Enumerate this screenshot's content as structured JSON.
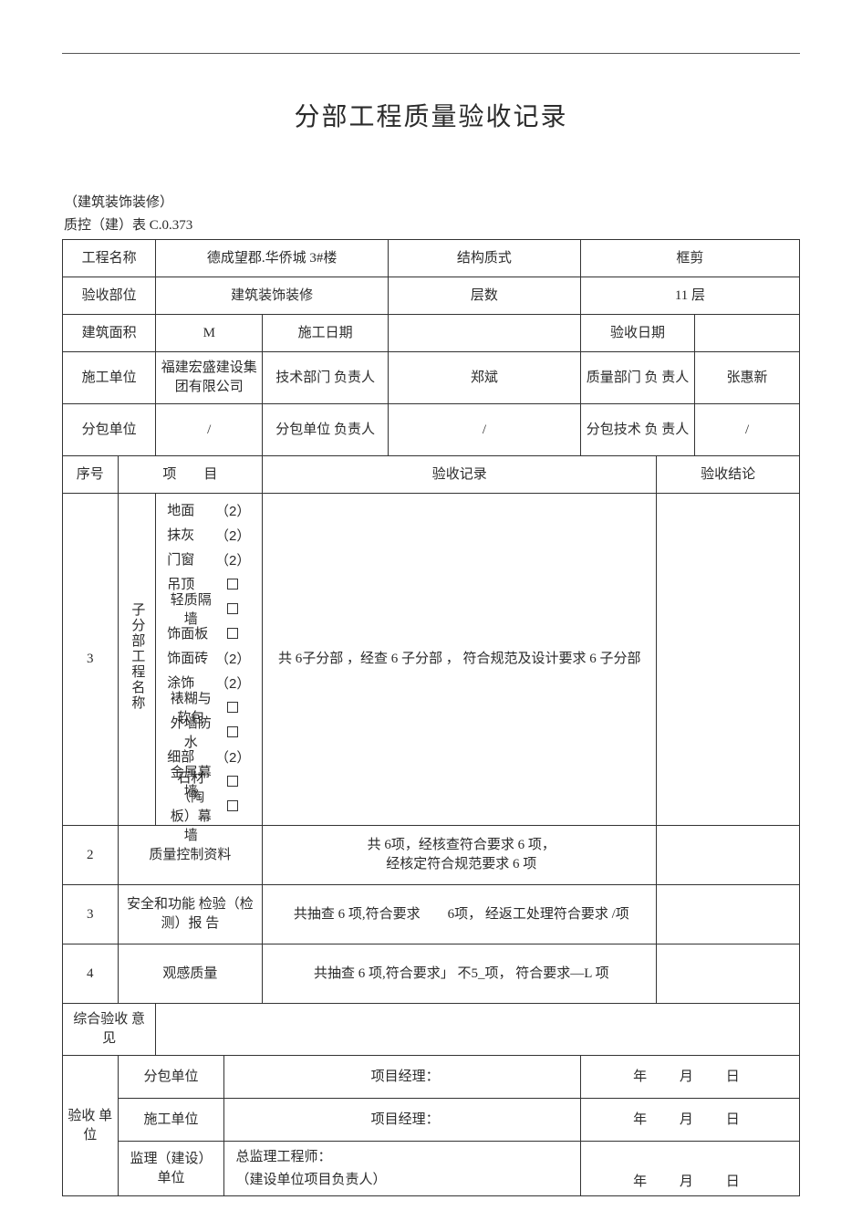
{
  "doc": {
    "title": "分部工程质量验收记录",
    "subtitle": "（建筑装饰装修）",
    "form_no": "质控（建）表 C.0.373"
  },
  "header": {
    "labels": {
      "project_name": "工程名称",
      "structure_type": "结构质式",
      "accept_part": "验收部位",
      "floors": "层数",
      "building_area": "建筑面积",
      "construct_date": "施工日期",
      "accept_date": "验收日期",
      "construct_unit": "施工单位",
      "tech_dept_leader": "技术部门 负责人",
      "quality_dept_leader": "质量部门 负 责人",
      "subcontract_unit": "分包单位",
      "sub_unit_leader": "分包单位 负责人",
      "sub_tech_leader": "分包技术 负 责人"
    },
    "values": {
      "project_name": "德成望郡.华侨城 3#楼",
      "structure_type": "框剪",
      "accept_part": "建筑装饰装修",
      "floors": "11 层",
      "building_area": "M",
      "construct_date": "",
      "accept_date": "",
      "construct_unit": "福建宏盛建设集团有限公司",
      "tech_dept_leader": "郑斌",
      "quality_dept_leader": "张惠新",
      "subcontract_unit": "/",
      "sub_unit_leader": "/",
      "sub_tech_leader": "/"
    }
  },
  "columns": {
    "seq": "序号",
    "item": "项　　目",
    "record": "验收记录",
    "conclusion": "验收结论"
  },
  "section3": {
    "seq": "3",
    "side_label": "子分部工程名称",
    "items": [
      {
        "name": "地面",
        "mark": "（2）"
      },
      {
        "name": "抹灰",
        "mark": "（2）"
      },
      {
        "name": "门窗",
        "mark": "（2）"
      },
      {
        "name": "吊顶",
        "mark": "box"
      },
      {
        "name": "轻质隔墙",
        "mark": "box"
      },
      {
        "name": "饰面板",
        "mark": "box"
      },
      {
        "name": "饰面砖",
        "mark": "（2）"
      },
      {
        "name": "涂饰",
        "mark": "（2）"
      },
      {
        "name": "裱糊与软包",
        "mark": "box"
      },
      {
        "name": "外墙防水",
        "mark": "box"
      },
      {
        "name": "细部",
        "mark": "（2）"
      },
      {
        "name": "金属幕墙",
        "mark": "box"
      },
      {
        "name": "石材（陶板）幕墙",
        "mark": "box"
      }
    ],
    "record": "共 6子分部 ，经查 6 子分部 ， 符合规范及设计要求 6 子分部"
  },
  "rows": {
    "r2": {
      "seq": "2",
      "item": "质量控制资料",
      "record": "共 6项，经核查符合要求 6 项，\n经核定符合规范要求 6 项"
    },
    "r3": {
      "seq": "3",
      "item": "安全和功能 检验（检测）报 告",
      "record": "共抽查 6 项,符合要求　　6项， 经返工处理符合要求 /项"
    },
    "r4": {
      "seq": "4",
      "item": "观感质量",
      "record": "共抽查 6 项,符合要求」 不5_项， 符合要求—L 项"
    }
  },
  "opinion": {
    "label": "综合验收 意见"
  },
  "signoff": {
    "side": "验收 单位",
    "rows": [
      {
        "unit": "分包单位",
        "role": "项目经理："
      },
      {
        "unit": "施工单位",
        "role": "项目经理："
      },
      {
        "unit": "监理（建设） 单位",
        "role": "总监理工程师：",
        "role2": "（建设单位项目负责人）"
      }
    ],
    "date": {
      "y": "年",
      "m": "月",
      "d": "日"
    }
  }
}
